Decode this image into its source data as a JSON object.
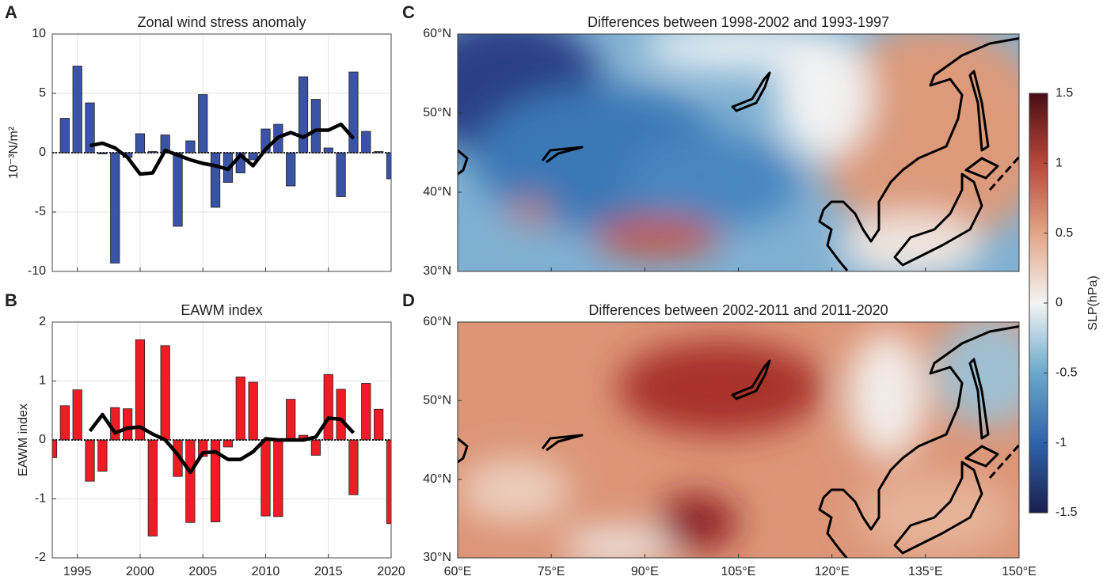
{
  "chart_data": [
    {
      "type": "bar",
      "panel": "A",
      "title": "Zonal wind stress anomaly",
      "ylabel": "10⁻³N/m²",
      "x": [
        1994,
        1995,
        1996,
        1997,
        1998,
        1999,
        2000,
        2001,
        2002,
        2003,
        2004,
        2005,
        2006,
        2007,
        2008,
        2009,
        2010,
        2011,
        2012,
        2013,
        2014,
        2015,
        2016,
        2017,
        2018,
        2019,
        2020
      ],
      "values": [
        2.9,
        7.3,
        4.2,
        -0.1,
        -9.3,
        -0.4,
        1.6,
        0.1,
        1.5,
        -6.2,
        1.0,
        4.9,
        -4.6,
        -2.5,
        -1.7,
        -0.6,
        2.0,
        2.4,
        -2.8,
        6.4,
        4.5,
        0.4,
        -3.7,
        6.8,
        1.8,
        0.1,
        -2.2
      ],
      "color": "#3a53a4",
      "smooth_x": [
        1996,
        1997,
        1998,
        1999,
        2000,
        2001,
        2002,
        2003,
        2004,
        2005,
        2006,
        2007,
        2008,
        2009,
        2010,
        2011,
        2012,
        2013,
        2014,
        2015,
        2016,
        2017
      ],
      "smooth_values": [
        0.6,
        0.8,
        0.4,
        -0.4,
        -1.8,
        -1.7,
        0.2,
        -0.2,
        -0.6,
        -0.9,
        -1.1,
        -1.4,
        -0.2,
        -1.1,
        0.3,
        1.3,
        1.7,
        1.3,
        1.9,
        1.9,
        2.4,
        1.2
      ],
      "line_color": "#000000",
      "xlim": [
        1993,
        2020
      ],
      "xticks": [
        1995,
        2000,
        2005,
        2010,
        2015,
        2020
      ],
      "show_xtick_labels": false,
      "ylim": [
        -10,
        10
      ],
      "yticks": [
        -10,
        -5,
        0,
        5,
        10
      ],
      "grid": true
    },
    {
      "type": "bar",
      "panel": "B",
      "title": "EAWM index",
      "ylabel": "EAWM index",
      "x": [
        1993,
        1994,
        1995,
        1996,
        1997,
        1998,
        1999,
        2000,
        2001,
        2002,
        2003,
        2004,
        2005,
        2006,
        2007,
        2008,
        2009,
        2010,
        2011,
        2012,
        2013,
        2014,
        2015,
        2016,
        2017,
        2018,
        2019,
        2020
      ],
      "values": [
        -0.3,
        0.58,
        0.85,
        -0.7,
        -0.53,
        0.55,
        0.53,
        1.7,
        -1.63,
        1.6,
        -0.62,
        -1.4,
        -0.28,
        -1.39,
        -0.12,
        1.07,
        0.98,
        -1.29,
        -1.3,
        0.69,
        0.08,
        -0.26,
        1.11,
        0.86,
        -0.93,
        0.96,
        0.52,
        -1.42
      ],
      "color": "#ee1c24",
      "smooth_x": [
        1996,
        1997,
        1998,
        1999,
        2000,
        2001,
        2002,
        2003,
        2004,
        2005,
        2006,
        2007,
        2008,
        2009,
        2010,
        2011,
        2012,
        2013,
        2014,
        2015,
        2016,
        2017
      ],
      "smooth_values": [
        0.15,
        0.43,
        0.12,
        0.2,
        0.22,
        0.1,
        0.0,
        -0.25,
        -0.55,
        -0.22,
        -0.2,
        -0.33,
        -0.33,
        -0.2,
        0.02,
        0.0,
        0.0,
        0.0,
        0.05,
        0.37,
        0.35,
        0.12
      ],
      "line_color": "#000000",
      "xlim": [
        1993,
        2020
      ],
      "xticks": [
        1995,
        2000,
        2005,
        2010,
        2015,
        2020
      ],
      "show_xtick_labels": true,
      "ylim": [
        -2,
        2
      ],
      "yticks": [
        -2,
        -1,
        0,
        1,
        2
      ],
      "grid": true
    },
    {
      "type": "map",
      "panel": "C",
      "title": "Differences between 1998-2002 and 1993-1997",
      "xlim": [
        60,
        150
      ],
      "xticks": [
        {
          "value": 60,
          "label": "60°E"
        },
        {
          "value": 75,
          "label": "75°E"
        },
        {
          "value": 90,
          "label": "90°E"
        },
        {
          "value": 105,
          "label": "105°E"
        },
        {
          "value": 120,
          "label": "120°E"
        },
        {
          "value": 135,
          "label": "135°E"
        },
        {
          "value": 150,
          "label": "150°E"
        }
      ],
      "show_xtick_labels": false,
      "ylim": [
        30,
        60
      ],
      "yticks": [
        {
          "value": 30,
          "label": "30°N"
        },
        {
          "value": 40,
          "label": "40°N"
        },
        {
          "value": 50,
          "label": "50°N"
        },
        {
          "value": 60,
          "label": "60°N"
        }
      ]
    },
    {
      "type": "map",
      "panel": "D",
      "title": "Differences between 2002-2011 and 2011-2020",
      "xlim": [
        60,
        150
      ],
      "xticks": [
        {
          "value": 60,
          "label": "60°E"
        },
        {
          "value": 75,
          "label": "75°E"
        },
        {
          "value": 90,
          "label": "90°E"
        },
        {
          "value": 105,
          "label": "105°E"
        },
        {
          "value": 120,
          "label": "120°E"
        },
        {
          "value": 135,
          "label": "135°E"
        },
        {
          "value": 150,
          "label": "150°E"
        }
      ],
      "show_xtick_labels": true,
      "ylim": [
        30,
        60
      ],
      "yticks": [
        {
          "value": 30,
          "label": "30°N"
        },
        {
          "value": 40,
          "label": "40°N"
        },
        {
          "value": 50,
          "label": "50°N"
        },
        {
          "value": 60,
          "label": "60°N"
        }
      ]
    },
    {
      "type": "colorbar",
      "label": "SLP(hPa)",
      "ylim": [
        -1.5,
        1.5
      ],
      "yticks": [
        -1.5,
        -1,
        -0.5,
        0,
        0.5,
        1,
        1.5
      ],
      "colors": [
        "#1a1f4f",
        "#2f63aa",
        "#6aa9cc",
        "#f4f4f4",
        "#e2a586",
        "#b8483a",
        "#4a0d14"
      ]
    }
  ]
}
